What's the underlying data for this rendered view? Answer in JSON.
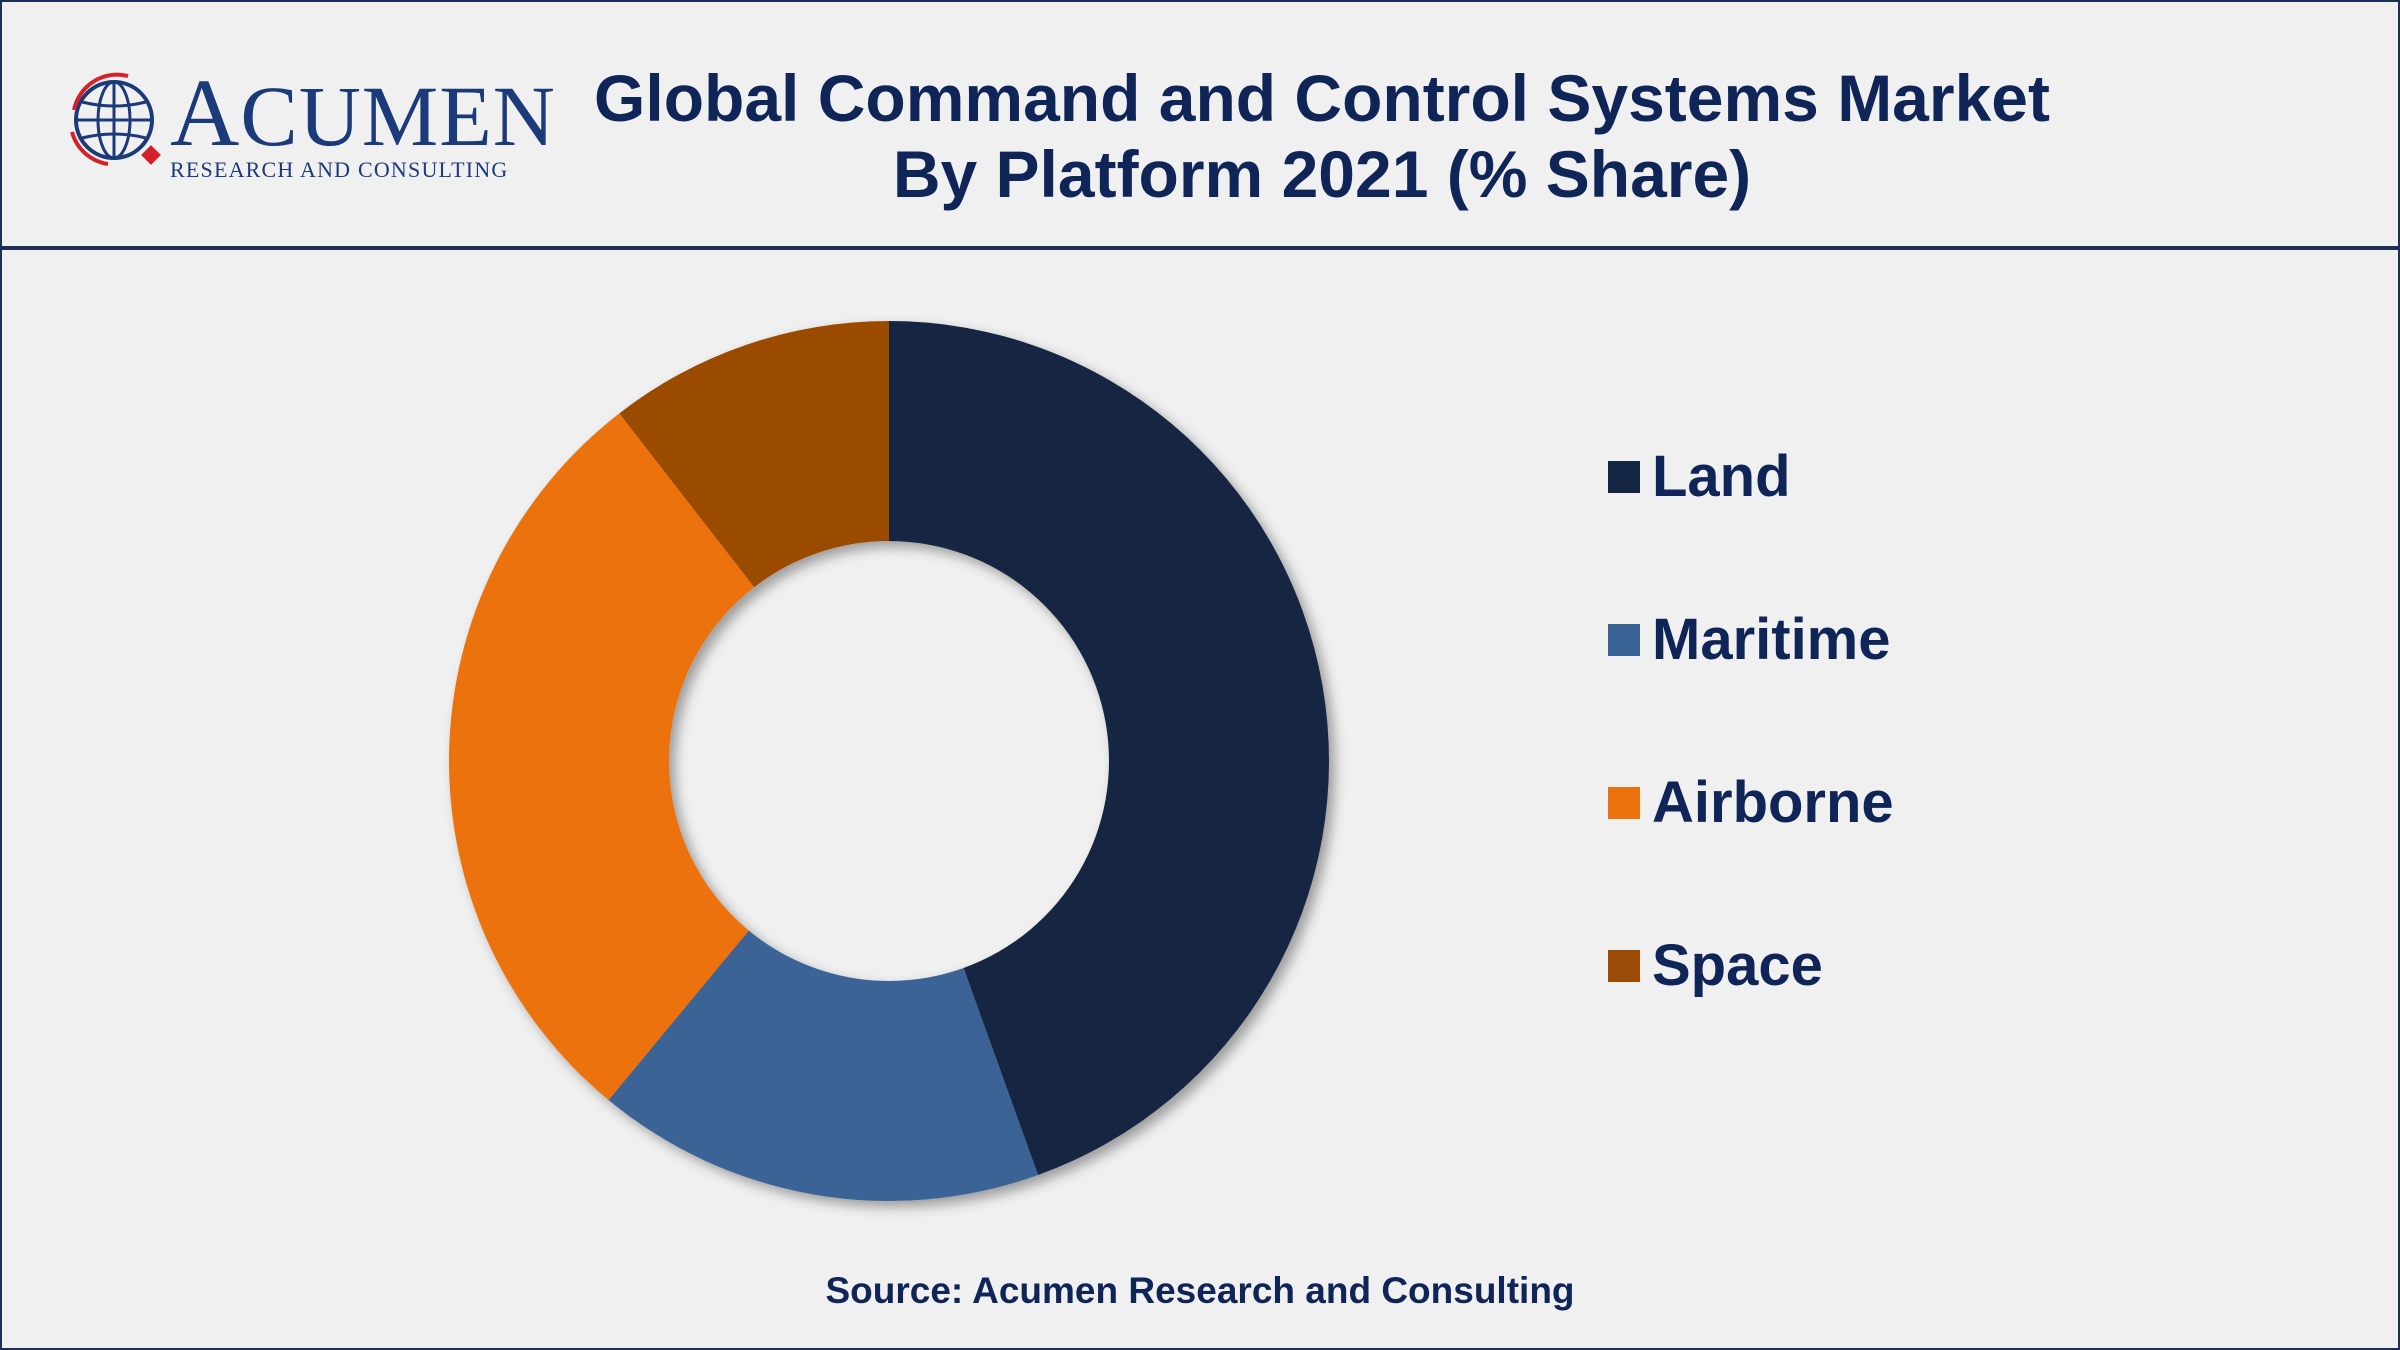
{
  "header": {
    "logo": {
      "name": "Acumen",
      "tagline": "RESEARCH AND CONSULTING"
    },
    "title_line1": "Global Command and Control Systems Market",
    "title_line2": "By Platform 2021 (% Share)"
  },
  "chart_data": {
    "type": "pie",
    "subtype": "donut",
    "title": "Global Command and Control Systems Market By Platform 2021 (% Share)",
    "categories": [
      "Land",
      "Maritime",
      "Airborne",
      "Space"
    ],
    "values": [
      44.5,
      16.5,
      28.5,
      10.5
    ],
    "colors": [
      "#132543",
      "#3b6496",
      "#ec720e",
      "#9b4b06"
    ],
    "legend_position": "right",
    "data_labels": false
  },
  "footer": {
    "source": "Source: Acumen Research and Consulting"
  }
}
